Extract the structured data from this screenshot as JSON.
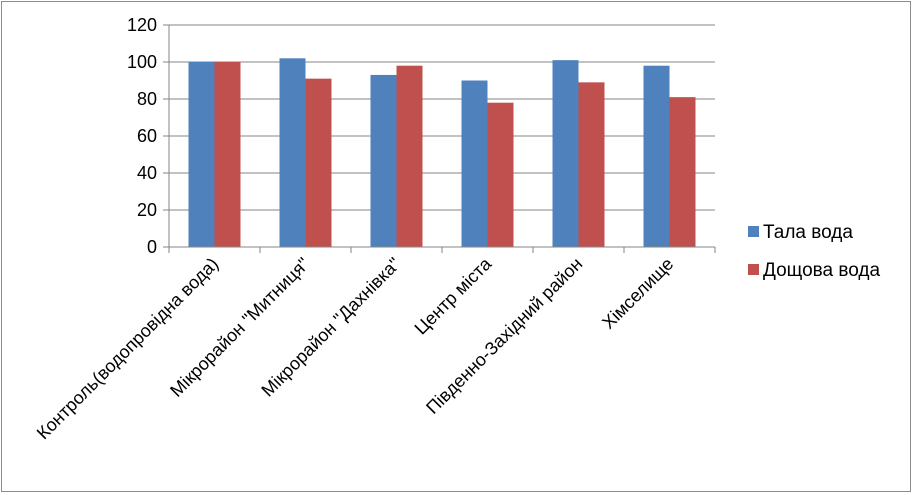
{
  "chart_data": {
    "type": "bar",
    "categories": [
      "Контроль(водопровідна вода)",
      "Мікрорайон \"Митниця\"",
      "Мікрорайон \"Дахнівка\"",
      "Центр міста",
      "Південно-Західний район",
      "Хімселище"
    ],
    "series": [
      {
        "name": "Тала вода",
        "values": [
          100,
          102,
          93,
          90,
          101,
          98
        ],
        "color": "#4f81bd"
      },
      {
        "name": "Дощова вода",
        "values": [
          100,
          91,
          98,
          78,
          89,
          81
        ],
        "color": "#c0504d"
      }
    ],
    "yticks": [
      0,
      20,
      40,
      60,
      80,
      100,
      120
    ],
    "ylim": [
      0,
      120
    ],
    "grid": true,
    "legend_position": "right"
  }
}
